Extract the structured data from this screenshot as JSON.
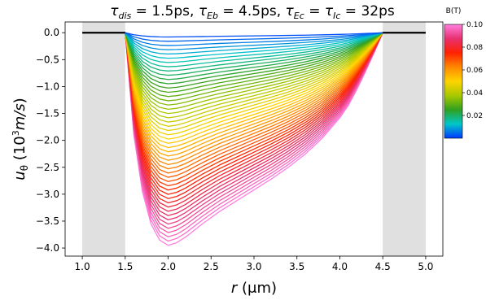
{
  "chart_data": {
    "type": "line",
    "title": "τ_dis = 1.5ps, τ_Eb = 4.5ps, τ_Ec = τ_Ic = 32ps",
    "title_parts": {
      "t1": "τ",
      "s1": "dis",
      "v1": " = 1.5ps, ",
      "t2": "τ",
      "s2": "Eb",
      "v2": " = 4.5ps, ",
      "t3": "τ",
      "s3": "Ec",
      "v3": " = ",
      "t4": "τ",
      "s4": "Ic",
      "v4": " = 32ps"
    },
    "xlabel": "r (μm)",
    "xlabel_parts": {
      "var": "r",
      "rest": " (μm)"
    },
    "ylabel": "u_θ (10^3 m/s)",
    "ylabel_parts": {
      "var": "u",
      "sub": "θ",
      "open": " (10",
      "sup": "3",
      "unit": "m/s",
      "close": ")"
    },
    "xlim": [
      0.8,
      5.2
    ],
    "ylim": [
      -4.15,
      0.2
    ],
    "x_ticks": [
      1.0,
      1.5,
      2.0,
      2.5,
      3.0,
      3.5,
      4.0,
      4.5,
      5.0
    ],
    "x_tick_labels": [
      "1.0",
      "1.5",
      "2.0",
      "2.5",
      "3.0",
      "3.5",
      "4.0",
      "4.5",
      "5.0"
    ],
    "y_ticks": [
      0.0,
      -0.5,
      -1.0,
      -1.5,
      -2.0,
      -2.5,
      -3.0,
      -3.5,
      -4.0
    ],
    "y_tick_labels": [
      "0.0",
      "−0.5",
      "−1.0",
      "−1.5",
      "−2.0",
      "−2.5",
      "−3.0",
      "−3.5",
      "−4.0"
    ],
    "shaded_regions": [
      [
        1.0,
        1.5
      ],
      [
        4.5,
        5.0
      ]
    ],
    "shade_color": "#e0e0e0",
    "zero_segments": [
      [
        1.0,
        1.5
      ],
      [
        4.5,
        5.0
      ]
    ],
    "curve_family": {
      "parameter": "B(T)",
      "b_min": 0.0,
      "b_max": 0.1,
      "count": 50,
      "r_inner": 1.5,
      "r_outer": 4.5,
      "profile_at_bmax": [
        [
          1.5,
          0.0
        ],
        [
          1.6,
          -1.9
        ],
        [
          1.7,
          -2.95
        ],
        [
          1.8,
          -3.55
        ],
        [
          1.9,
          -3.85
        ],
        [
          2.0,
          -3.95
        ],
        [
          2.1,
          -3.9
        ],
        [
          2.2,
          -3.8
        ],
        [
          2.4,
          -3.55
        ],
        [
          2.6,
          -3.32
        ],
        [
          2.8,
          -3.12
        ],
        [
          3.0,
          -2.92
        ],
        [
          3.2,
          -2.72
        ],
        [
          3.4,
          -2.5
        ],
        [
          3.6,
          -2.25
        ],
        [
          3.8,
          -1.95
        ],
        [
          4.0,
          -1.58
        ],
        [
          4.1,
          -1.35
        ],
        [
          4.2,
          -1.05
        ],
        [
          4.3,
          -0.72
        ],
        [
          4.4,
          -0.37
        ],
        [
          4.5,
          0.0
        ]
      ]
    },
    "colorbar": {
      "label": "B(T)",
      "range": [
        0.0,
        0.1
      ],
      "ticks": [
        0.02,
        0.04,
        0.06,
        0.08,
        0.1
      ],
      "tick_labels": [
        "0.02",
        "0.04",
        "0.06",
        "0.08",
        "0.10"
      ],
      "colormap_stops": [
        "#0038ff",
        "#00c8c8",
        "#30a020",
        "#a8c800",
        "#ffd400",
        "#ff8800",
        "#ff2200",
        "#e83070",
        "#ff80e0"
      ]
    },
    "grid": false
  }
}
